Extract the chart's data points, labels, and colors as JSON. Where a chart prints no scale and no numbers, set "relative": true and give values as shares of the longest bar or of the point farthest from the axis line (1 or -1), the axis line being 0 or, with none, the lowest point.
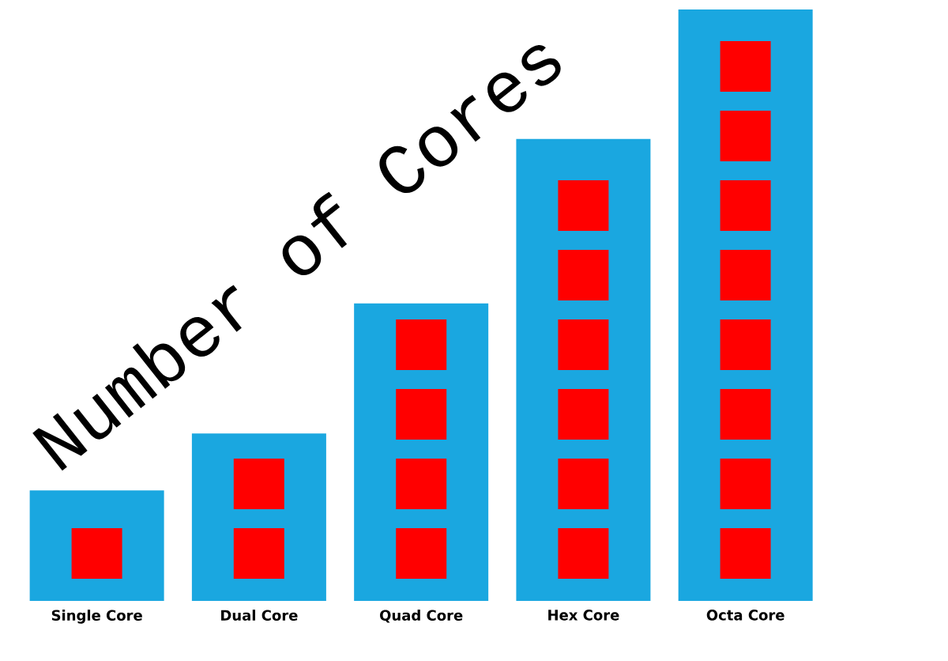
{
  "chart_data": {
    "type": "bar",
    "title": "Number of Cores",
    "relative": true,
    "categories": [
      "Single Core",
      "Dual Core",
      "Quad Core",
      "Hex Core",
      "Octa Core"
    ],
    "series": [
      {
        "color": "#1aa7e0",
        "values": [
          0.187,
          0.283,
          0.503,
          0.781,
          1
        ]
      }
    ]
  }
}
